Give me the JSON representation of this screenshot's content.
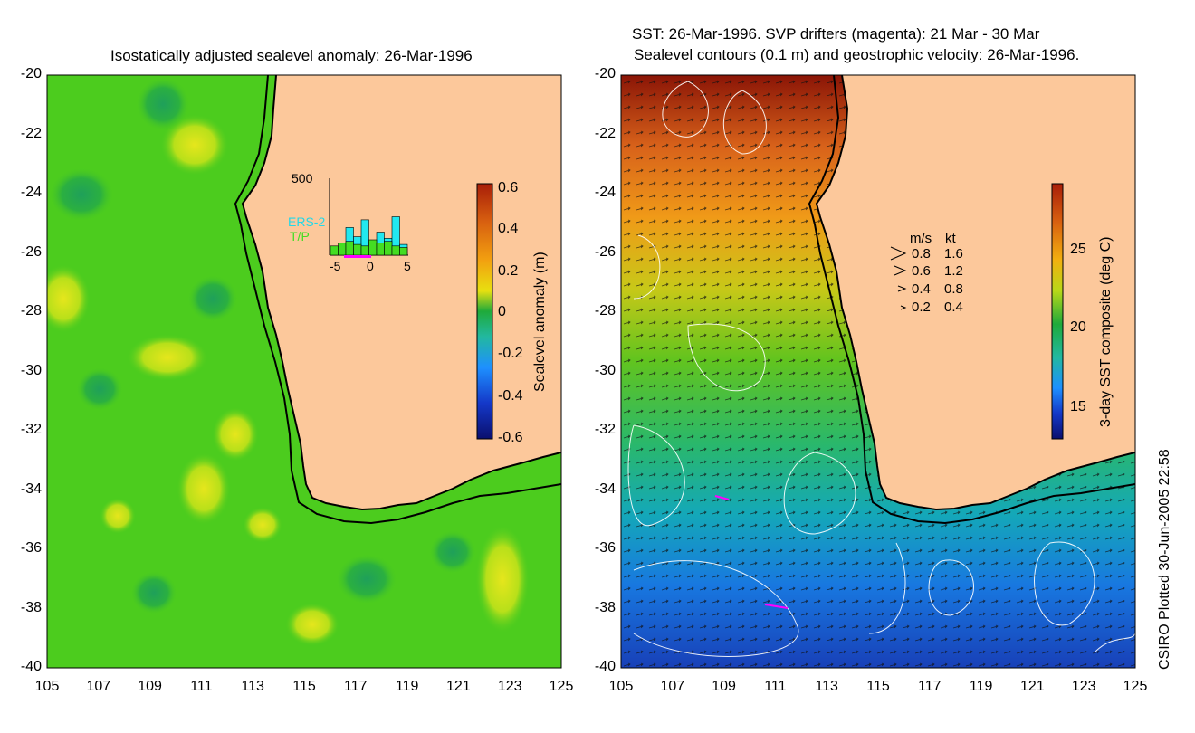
{
  "left_panel": {
    "title": "Isostatically adjusted sealevel anomaly: 26-Mar-1996",
    "colorbar": {
      "label": "Sealevel anomaly (m)",
      "ticks": [
        "0.6",
        "0.4",
        "0.2",
        "0",
        "-0.2",
        "-0.4",
        "-0.6"
      ],
      "colors": [
        "#0a0f6e",
        "#1438c8",
        "#1e90ff",
        "#22b8a0",
        "#1faa3a",
        "#7ad61a",
        "#e8e010",
        "#f2a010",
        "#d86010",
        "#a81e08"
      ]
    },
    "histogram": {
      "y_max_label": "500",
      "x_ticks": [
        "-5",
        "0",
        "5"
      ],
      "series": [
        "ERS-2",
        "T/P"
      ],
      "ers2_values": [
        40,
        60,
        180,
        120,
        230,
        90,
        150,
        110,
        250,
        70
      ],
      "tp_values": [
        60,
        80,
        90,
        70,
        60,
        100,
        80,
        90,
        60,
        50
      ]
    }
  },
  "right_panel": {
    "title_line1": "SST: 26-Mar-1996. SVP drifters (magenta): 21 Mar - 30 Mar",
    "title_line2": "Sealevel contours (0.1 m) and geostrophic velocity: 26-Mar-1996.",
    "colorbar": {
      "label": "3-day SST composite (deg C)",
      "ticks": [
        "25",
        "20",
        "15"
      ],
      "colors": [
        "#0a0f6e",
        "#1438c8",
        "#1e90ff",
        "#22b8a0",
        "#1faa3a",
        "#7ad61a",
        "#e8e010",
        "#f2a010",
        "#d86010",
        "#a81e08"
      ]
    },
    "velocity_legend": {
      "header_ms": "m/s",
      "header_kt": "kt",
      "rows": [
        {
          "ms": "0.8",
          "kt": "1.6"
        },
        {
          "ms": "0.6",
          "kt": "1.2"
        },
        {
          "ms": "0.4",
          "kt": "0.8"
        },
        {
          "ms": "0.2",
          "kt": "0.4"
        }
      ]
    }
  },
  "axes": {
    "y_ticks": [
      "-20",
      "-22",
      "-24",
      "-26",
      "-28",
      "-30",
      "-32",
      "-34",
      "-36",
      "-38",
      "-40"
    ],
    "x_ticks": [
      "105",
      "107",
      "109",
      "111",
      "113",
      "115",
      "117",
      "119",
      "121",
      "123",
      "125"
    ]
  },
  "credit": "CSIRO Plotted 30-Jun-2005 22:58",
  "colors": {
    "land": "#fcc89b",
    "coast": "#000000"
  }
}
